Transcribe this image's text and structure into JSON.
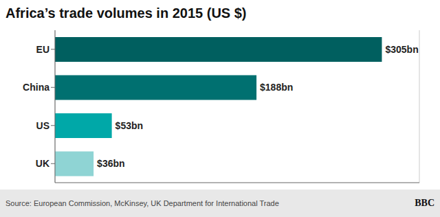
{
  "chart_data": {
    "type": "bar",
    "orientation": "horizontal",
    "title": "Africa’s trade volumes in 2015 (US $)",
    "categories": [
      "EU",
      "China",
      "US",
      "UK"
    ],
    "values": [
      305,
      188,
      53,
      36
    ],
    "value_labels": [
      "$305bn",
      "$188bn",
      "$53bn",
      "$36bn"
    ],
    "data_labels": true,
    "colors": [
      "#005f5f",
      "#007070",
      "#00a8a8",
      "#8fd4d4"
    ],
    "xlim": [
      0,
      340
    ],
    "xticks": [
      0,
      100,
      200,
      300
    ],
    "grid": true,
    "tick_labels": "y",
    "annotations": [
      "Source: European Commission, McKinsey, UK Department for International Trade",
      "BBC"
    ]
  }
}
